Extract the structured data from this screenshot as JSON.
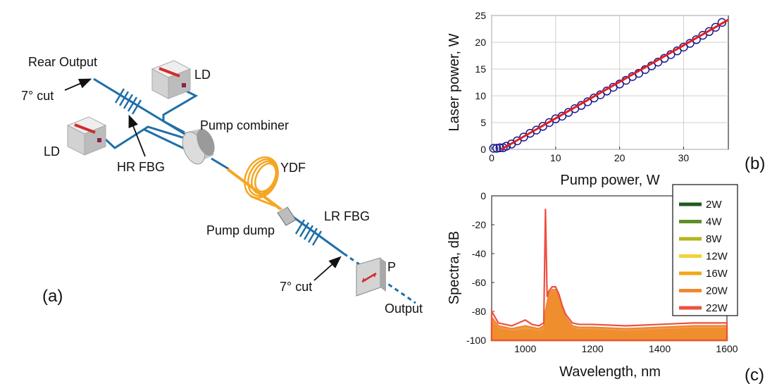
{
  "diagram": {
    "panel_label": "(a)",
    "labels": {
      "rear_output": "Rear Output",
      "ld_top": "LD",
      "ld_left": "LD",
      "cut_top": "7° cut",
      "hr_fbg": "HR FBG",
      "pump_combiner": "Pump combiner",
      "ydf": "YDF",
      "pump_dump": "Pump dump",
      "lr_fbg": "LR FBG",
      "polarizer": "P",
      "cut_bottom": "7° cut",
      "output": "Output"
    },
    "colors": {
      "fiber": "#1f6fa8",
      "ydf": "#f5a623",
      "ld_stripe": "#d22b2b"
    }
  },
  "chart_data": [
    {
      "type": "scatter",
      "panel_label": "(b)",
      "title": "",
      "xlabel": "Pump power, W",
      "ylabel": "Laser power, W",
      "xlim": [
        0,
        37
      ],
      "ylim": [
        0,
        25
      ],
      "xticks": [
        0,
        10,
        20,
        30
      ],
      "yticks": [
        0,
        5,
        10,
        15,
        20,
        25
      ],
      "grid": true,
      "series": [
        {
          "style": "open-circles",
          "color": "#1a1a8c",
          "x": [
            0.3,
            0.8,
            1.3,
            1.8,
            2.3,
            3.1,
            4.0,
            5.0,
            6.0,
            7.0,
            8.0,
            9.0,
            10.0,
            11.0,
            12.0,
            13.0,
            14.0,
            15.0,
            16.0,
            17.0,
            18.0,
            19.0,
            20.0,
            21.0,
            22.0,
            23.0,
            24.0,
            25.0,
            26.0,
            27.0,
            28.0,
            29.0,
            30.0,
            31.0,
            32.0,
            33.0,
            34.0,
            35.0,
            36.0
          ],
          "y": [
            0.2,
            0.2,
            0.3,
            0.3,
            0.6,
            1.0,
            1.6,
            2.3,
            3.0,
            3.6,
            4.3,
            5.0,
            5.7,
            6.2,
            6.9,
            7.6,
            8.2,
            8.9,
            9.6,
            10.2,
            10.9,
            11.6,
            12.2,
            12.9,
            13.6,
            14.2,
            14.9,
            15.6,
            16.3,
            17.0,
            17.7,
            18.4,
            19.1,
            19.8,
            20.5,
            21.3,
            22.0,
            22.8,
            23.7
          ]
        },
        {
          "style": "line",
          "color": "#e02020",
          "x": [
            1.5,
            37
          ],
          "y": [
            0,
            24.2
          ]
        }
      ]
    },
    {
      "type": "line",
      "panel_label": "(c)",
      "title": "",
      "xlabel": "Wavelength, nm",
      "ylabel": "Spectra, dB",
      "xlim": [
        900,
        1600
      ],
      "ylim": [
        -100,
        0
      ],
      "xticks": [
        1000,
        1200,
        1400,
        1600
      ],
      "yticks": [
        0,
        -20,
        -40,
        -60,
        -80,
        -100
      ],
      "legend_position": "top-right",
      "x": [
        900,
        920,
        960,
        1000,
        1020,
        1040,
        1055,
        1060,
        1065,
        1070,
        1080,
        1090,
        1100,
        1110,
        1120,
        1140,
        1160,
        1200,
        1300,
        1400,
        1500,
        1600
      ],
      "series": [
        {
          "name": "2W",
          "color": "#1e5a1e",
          "values": [
            -98,
            -99,
            -100,
            -100,
            -100,
            -100,
            -100,
            -97,
            -90,
            -80,
            -73,
            -73,
            -78,
            -86,
            -94,
            -100,
            -100,
            -100,
            -100,
            -100,
            -100,
            -100
          ]
        },
        {
          "name": "4W",
          "color": "#5f8f2a",
          "values": [
            -97,
            -98,
            -99,
            -100,
            -100,
            -100,
            -99,
            -96,
            -88,
            -78,
            -72,
            -72,
            -77,
            -85,
            -92,
            -99,
            -100,
            -100,
            -100,
            -100,
            -100,
            -100
          ]
        },
        {
          "name": "8W",
          "color": "#b4b41e",
          "values": [
            -93,
            -96,
            -98,
            -98,
            -97,
            -98,
            -98,
            -94,
            -86,
            -76,
            -71,
            -71,
            -76,
            -84,
            -90,
            -96,
            -97,
            -97,
            -98,
            -98,
            -97,
            -97
          ]
        },
        {
          "name": "12W",
          "color": "#f2d23a",
          "values": [
            -90,
            -94,
            -96,
            -96,
            -95,
            -96,
            -96,
            -92,
            -84,
            -74,
            -69,
            -69,
            -74,
            -82,
            -88,
            -94,
            -95,
            -95,
            -96,
            -95,
            -94,
            -94
          ]
        },
        {
          "name": "16W",
          "color": "#f0a818",
          "values": [
            -87,
            -92,
            -94,
            -93,
            -93,
            -94,
            -93,
            -88,
            -80,
            -71,
            -67,
            -67,
            -72,
            -80,
            -86,
            -92,
            -93,
            -93,
            -94,
            -93,
            -92,
            -92
          ]
        },
        {
          "name": "20W",
          "color": "#ee8830",
          "values": [
            -84,
            -90,
            -92,
            -90,
            -91,
            -92,
            -90,
            -80,
            -74,
            -68,
            -65,
            -65,
            -70,
            -78,
            -84,
            -90,
            -91,
            -91,
            -92,
            -91,
            -90,
            -90
          ]
        },
        {
          "name": "22W",
          "color": "#ee5040",
          "values": [
            -80,
            -88,
            -90,
            -86,
            -89,
            -90,
            -88,
            -9,
            -70,
            -66,
            -63,
            -63,
            -68,
            -76,
            -82,
            -88,
            -89,
            -89,
            -90,
            -89,
            -88,
            -88
          ]
        }
      ]
    }
  ]
}
